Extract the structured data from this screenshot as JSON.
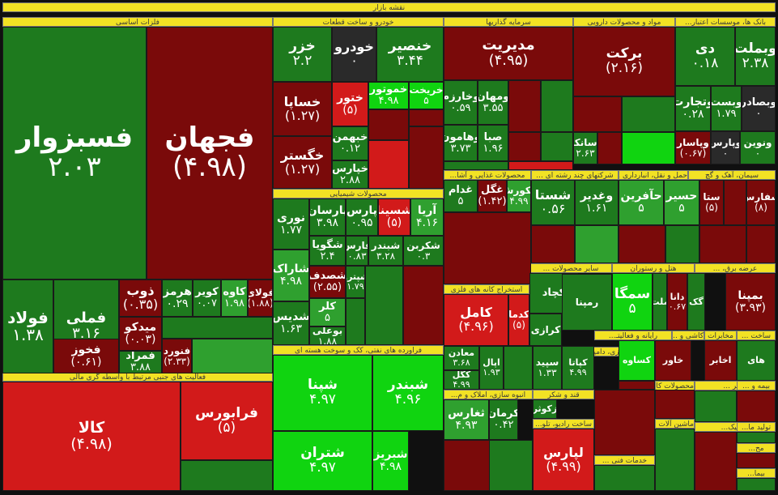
{
  "title": "نقشه بازار",
  "colors": {
    "dark_green": "#1e7a1e",
    "green": "#2fa02f",
    "bright_green": "#10d410",
    "dark_red": "#7a0a0a",
    "red": "#d21a1a",
    "neutral": "#2a2a2a"
  },
  "sectors": [
    {
      "label": "فلزات اساسی"
    },
    {
      "label": "خودرو و ساخت قطعات"
    },
    {
      "label": "سرمایه گذاریها"
    },
    {
      "label": "مواد و محصولات دارویی"
    },
    {
      "label": "بانک ها، موسسات اعتبار..."
    },
    {
      "label": "فعالیت های جنبی مرتبط با واسطه گری مالی"
    },
    {
      "label": "محصولات شیمیایی"
    },
    {
      "label": "محصولات غذایی و آشا..."
    },
    {
      "label": "شرکتهای چند رشته ای ..."
    },
    {
      "label": "حمل و نقل، انبارداری ..."
    },
    {
      "label": "سیمان، آهک و گچ"
    },
    {
      "label": "استخراج کانه های فلزی"
    },
    {
      "label": "فراورده های نفتی، کک و سوخت هسته ای"
    },
    {
      "label": "سایر محصولات ..."
    },
    {
      "label": "هتل و رستوران"
    },
    {
      "label": "عرضه برق، ..."
    },
    {
      "label": "رایانه و فعالیتـ..."
    },
    {
      "label": "کاشی و ..."
    },
    {
      "label": "مخابرات"
    },
    {
      "label": "ساخت ..."
    },
    {
      "label": "کشاورزی، دامپرو..."
    },
    {
      "label": "انبوه سازی، املاک و م..."
    },
    {
      "label": "قند و شکر"
    },
    {
      "label": "ساير ..."
    },
    {
      "label": "محصولات کاغ..."
    },
    {
      "label": "بیمه و ..."
    },
    {
      "label": "خرده ..."
    },
    {
      "label": "ساخت رادیو، تلو..."
    },
    {
      "label": "ماشین آلات ..."
    },
    {
      "label": "لاستیک..."
    },
    {
      "label": "تولید ما..."
    },
    {
      "label": "خدمات فنی ..."
    },
    {
      "label": "مح..."
    },
    {
      "label": "بیما..."
    }
  ],
  "tiles": [
    {
      "name": "فسبزوار",
      "value": "۲.۰۳",
      "color": "#1e7a1e"
    },
    {
      "name": "فجهان",
      "value": "(۴.۹۸)",
      "color": "#7a0a0a"
    },
    {
      "name": "فولاد",
      "value": "۱.۳۸",
      "color": "#1e7a1e"
    },
    {
      "name": "فملی",
      "value": "۳.۱۶",
      "color": "#1e7a1e"
    },
    {
      "name": "ذوب",
      "value": "(۰.۳۵)",
      "color": "#7a0a0a"
    },
    {
      "name": "هرمز",
      "value": "۰.۲۹",
      "color": "#1e7a1e"
    },
    {
      "name": "کویر",
      "value": "۰.۰۷",
      "color": "#1e7a1e"
    },
    {
      "name": "کاوه",
      "value": "۱.۹۸",
      "color": "#2fa02f"
    },
    {
      "name": "فولای",
      "value": "(۱.۸۸)",
      "color": "#7a0a0a"
    },
    {
      "name": "میدکو",
      "value": "(۰.۰۳)",
      "color": "#7a0a0a"
    },
    {
      "name": "فخوز",
      "value": "(۰.۶۱)",
      "color": "#7a0a0a"
    },
    {
      "name": "فمراد",
      "value": "۳.۸۸",
      "color": "#1e7a1e"
    },
    {
      "name": "فنورد",
      "value": "(۲.۳۳)",
      "color": "#7a0a0a"
    },
    {
      "name": "خزر",
      "value": "۲.۲",
      "color": "#1e7a1e"
    },
    {
      "name": "خودرو",
      "value": "۰",
      "color": "#2a2a2a"
    },
    {
      "name": "خنصیر",
      "value": "۳.۴۴",
      "color": "#1e7a1e"
    },
    {
      "name": "خساپا",
      "value": "(۱.۲۷)",
      "color": "#7a0a0a"
    },
    {
      "name": "ختور",
      "value": "(۵)",
      "color": "#d21a1a"
    },
    {
      "name": "خموتور",
      "value": "۴.۹۸",
      "color": "#10d410"
    },
    {
      "name": "خریخت",
      "value": "۵",
      "color": "#10d410"
    },
    {
      "name": "خبهمن",
      "value": "۰.۱۲",
      "color": "#1e7a1e"
    },
    {
      "name": "خگستر",
      "value": "(۱.۲۷)",
      "color": "#7a0a0a"
    },
    {
      "name": "خپارس",
      "value": "۲.۸۸",
      "color": "#1e7a1e"
    },
    {
      "name": "کالا",
      "value": "(۴.۹۸)",
      "color": "#d21a1a"
    },
    {
      "name": "فرابورس",
      "value": "(۵)",
      "color": "#d21a1a"
    },
    {
      "name": "مدیریت",
      "value": "(۴.۹۵)",
      "color": "#7a0a0a"
    },
    {
      "name": "وخارزم",
      "value": "۰.۵۹",
      "color": "#1e7a1e"
    },
    {
      "name": "ومهان",
      "value": "۳.۵۵",
      "color": "#1e7a1e"
    },
    {
      "name": "صبا",
      "value": "۱.۹۶",
      "color": "#1e7a1e"
    },
    {
      "name": "وهامون",
      "value": "۳.۷۳",
      "color": "#1e7a1e"
    },
    {
      "name": "برکت",
      "value": "(۲.۱۶)",
      "color": "#7a0a0a"
    },
    {
      "name": "دسانکو",
      "value": "۲.۶۳",
      "color": "#1e7a1e"
    },
    {
      "name": "دی",
      "value": "۰.۱۸",
      "color": "#1e7a1e"
    },
    {
      "name": "وبملت",
      "value": "۲.۳۸",
      "color": "#1e7a1e"
    },
    {
      "name": "وتجارت",
      "value": "۰.۲۸",
      "color": "#1e7a1e"
    },
    {
      "name": "وبست",
      "value": "۱.۷۹",
      "color": "#1e7a1e"
    },
    {
      "name": "وبصادر",
      "value": "۰",
      "color": "#2a2a2a"
    },
    {
      "name": "وپارس",
      "value": "۰",
      "color": "#2a2a2a"
    },
    {
      "name": "ونوین",
      "value": "۰",
      "color": "#1e7a1e"
    },
    {
      "name": "وپاسار",
      "value": "(۰.۶۷)",
      "color": "#7a0a0a"
    },
    {
      "name": "نوری",
      "value": "۱.۷۷",
      "color": "#1e7a1e"
    },
    {
      "name": "پارسان",
      "value": "۳.۹۸",
      "color": "#1e7a1e"
    },
    {
      "name": "پارس",
      "value": "۰.۹۵",
      "color": "#1e7a1e"
    },
    {
      "name": "شسینا",
      "value": "(۵)",
      "color": "#d21a1a"
    },
    {
      "name": "آریا",
      "value": "۴.۱۶",
      "color": "#2fa02f"
    },
    {
      "name": "شگویا",
      "value": "۲.۴",
      "color": "#1e7a1e"
    },
    {
      "name": "فارس",
      "value": "۰.۸۳",
      "color": "#1e7a1e"
    },
    {
      "name": "شبندر",
      "value": "۳.۲۸",
      "color": "#1e7a1e"
    },
    {
      "name": "شکربن",
      "value": "۰.۳",
      "color": "#1e7a1e"
    },
    {
      "name": "شاراک",
      "value": "۴.۹۸",
      "color": "#2fa02f"
    },
    {
      "name": "شصدف",
      "value": "(۲.۵۵)",
      "color": "#7a0a0a"
    },
    {
      "name": "شپترو",
      "value": "۱.۷۹",
      "color": "#1e7a1e"
    },
    {
      "name": "شدیس",
      "value": "۱.۶۳",
      "color": "#1e7a1e"
    },
    {
      "name": "کلر",
      "value": "۵",
      "color": "#2fa02f"
    },
    {
      "name": "بوعلی",
      "value": "۱.۸۸",
      "color": "#1e7a1e"
    },
    {
      "name": "شپنا",
      "value": "۴.۹۷",
      "color": "#10d410"
    },
    {
      "name": "شبندر",
      "value": "۴.۹۶",
      "color": "#10d410"
    },
    {
      "name": "شتران",
      "value": "۴.۹۷",
      "color": "#10d410"
    },
    {
      "name": "شبریز",
      "value": "۴.۹۸",
      "color": "#10d410"
    },
    {
      "name": "غدام",
      "value": "۵",
      "color": "#1e7a1e"
    },
    {
      "name": "غگل",
      "value": "(۱.۴۲)",
      "color": "#7a0a0a"
    },
    {
      "name": "غکورش",
      "value": "۴.۹۹",
      "color": "#2fa02f"
    },
    {
      "name": "شستا",
      "value": "۰.۵۶",
      "color": "#1e7a1e"
    },
    {
      "name": "وغدیر",
      "value": "۱.۶۱",
      "color": "#1e7a1e"
    },
    {
      "name": "حآفرین",
      "value": "۵",
      "color": "#2fa02f"
    },
    {
      "name": "حسیر",
      "value": "۵",
      "color": "#2fa02f"
    },
    {
      "name": "ستا",
      "value": "(۵)",
      "color": "#7a0a0a"
    },
    {
      "name": "سفارس",
      "value": "(۸)",
      "color": "#7a0a0a"
    },
    {
      "name": "کامل",
      "value": "(۴.۹۶)",
      "color": "#d21a1a"
    },
    {
      "name": "کدما",
      "value": "(۵)",
      "color": "#d21a1a"
    },
    {
      "name": "کچاد",
      "value": "",
      "color": "#1e7a1e"
    },
    {
      "name": "سمگا",
      "value": "۵",
      "color": "#10d410"
    },
    {
      "name": "بمپنا",
      "value": "(۳.۹۳)",
      "color": "#7a0a0a"
    },
    {
      "name": "دانا",
      "value": "(۰.۶۷)",
      "color": "#7a0a0a"
    },
    {
      "name": "ملت",
      "value": "",
      "color": "#1e7a1e"
    },
    {
      "name": "گک",
      "value": "",
      "color": "#1e7a1e"
    },
    {
      "name": "ثغارس",
      "value": "۴.۹۳",
      "color": "#2fa02f"
    },
    {
      "name": "کرمان",
      "value": "۰.۴۲",
      "color": "#1e7a1e"
    },
    {
      "name": "زکوثر",
      "value": "",
      "color": "#1e7a1e"
    },
    {
      "name": "لپارس",
      "value": "(۴.۹۹)",
      "color": "#d21a1a"
    },
    {
      "name": "سپید",
      "value": "۱.۳۳",
      "color": "#1e7a1e"
    },
    {
      "name": "کپاتا",
      "value": "۴.۹۹",
      "color": "#1e7a1e"
    },
    {
      "name": "اپال",
      "value": "۱.۹۳",
      "color": "#1e7a1e"
    },
    {
      "name": "معادن",
      "value": "۳.۶۸",
      "color": "#1e7a1e"
    },
    {
      "name": "کگل",
      "value": "۴.۹۹",
      "color": "#1e7a1e"
    },
    {
      "name": "رمپنا",
      "value": "",
      "color": "#1e7a1e"
    },
    {
      "name": "کرازی",
      "value": "",
      "color": "#1e7a1e"
    },
    {
      "name": "کساوه",
      "value": "",
      "color": "#10d410"
    },
    {
      "name": "خاور",
      "value": "",
      "color": "#7a0a0a"
    },
    {
      "name": "اخابر",
      "value": "",
      "color": "#7a0a0a"
    },
    {
      "name": "های",
      "value": "",
      "color": "#1e7a1e"
    }
  ]
}
